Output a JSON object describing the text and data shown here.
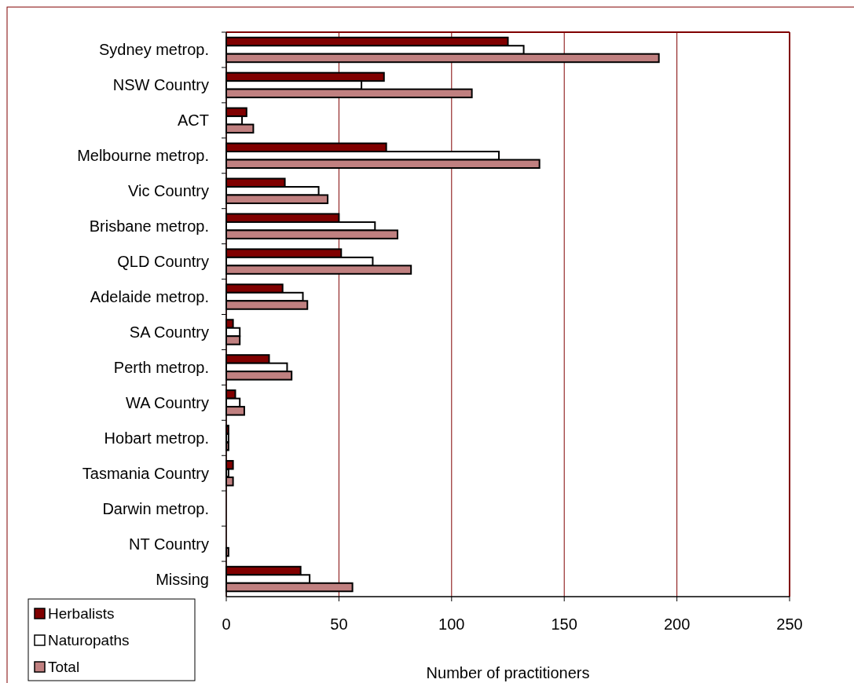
{
  "chart_data": {
    "type": "bar",
    "orientation": "horizontal",
    "xlabel": "Number of practitioners",
    "categories": [
      "Sydney metrop.",
      "NSW Country",
      "ACT",
      "Melbourne metrop.",
      "Vic Country",
      "Brisbane metrop.",
      "QLD Country",
      "Adelaide metrop.",
      "SA Country",
      "Perth metrop.",
      "WA Country",
      "Hobart metrop.",
      "Tasmania Country",
      "Darwin metrop.",
      "NT Country",
      "Missing"
    ],
    "series": [
      {
        "name": "Herbalists",
        "color": "#800000",
        "values": [
          125,
          70,
          9,
          71,
          26,
          50,
          51,
          25,
          3,
          19,
          4,
          1,
          3,
          0,
          0,
          33
        ]
      },
      {
        "name": "Naturopaths",
        "color": "#ffffff",
        "values": [
          132,
          60,
          7,
          121,
          41,
          66,
          65,
          34,
          6,
          27,
          6,
          1,
          1,
          0,
          0,
          37
        ]
      },
      {
        "name": "Total",
        "color": "#c08080",
        "values": [
          192,
          109,
          12,
          139,
          45,
          76,
          82,
          36,
          6,
          29,
          8,
          1,
          3,
          0,
          1,
          56
        ]
      }
    ],
    "xlim": [
      0,
      250
    ],
    "xticks": [
      0,
      50,
      100,
      150,
      200,
      250
    ],
    "grid": "x",
    "legend": "bottom left"
  }
}
